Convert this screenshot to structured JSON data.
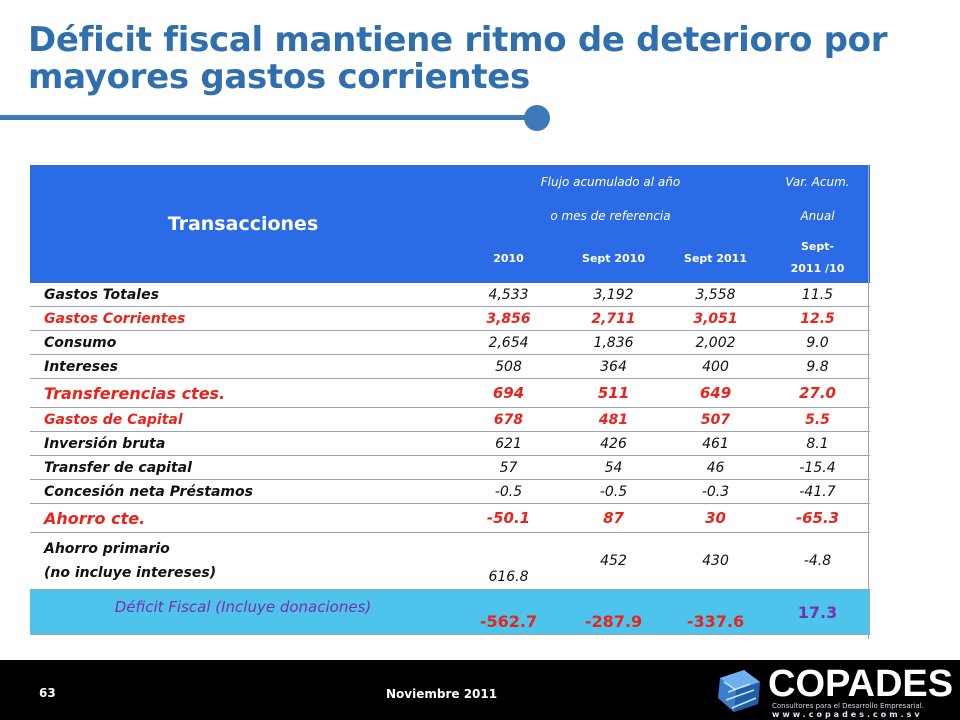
{
  "title": {
    "line1": "Déficit fiscal mantiene ritmo de deterioro por",
    "line2": "mayores gastos corrientes"
  },
  "table": {
    "header": {
      "transacciones": "Transacciones",
      "flujo_line1": "Flujo acumulado al año",
      "flujo_line2": "o mes de referencia",
      "var_line1": "Var. Acum.",
      "var_line2": "Anual",
      "col_2010": "2010",
      "col_sept2010": "Sept 2010",
      "col_sept2011": "Sept 2011",
      "col_var_line1": "Sept-",
      "col_var_line2": "2011 /10"
    },
    "rows": [
      {
        "label": "Gastos Totales",
        "v2010": "4,533",
        "s2010": "3,192",
        "s2011": "3,558",
        "var": "11.5"
      },
      {
        "label": "Gastos Corrientes",
        "v2010": "3,856",
        "s2010": "2,711",
        "s2011": "3,051",
        "var": "12.5"
      },
      {
        "label": "Consumo",
        "v2010": "2,654",
        "s2010": "1,836",
        "s2011": "2,002",
        "var": "9.0"
      },
      {
        "label": "Intereses",
        "v2010": "508",
        "s2010": "364",
        "s2011": "400",
        "var": "9.8"
      },
      {
        "label": "Transferencias ctes.",
        "v2010": "694",
        "s2010": "511",
        "s2011": "649",
        "var": "27.0"
      },
      {
        "label": "Gastos de Capital",
        "v2010": "678",
        "s2010": "481",
        "s2011": "507",
        "var": "5.5"
      },
      {
        "label": "Inversión bruta",
        "v2010": "621",
        "s2010": "426",
        "s2011": "461",
        "var": "8.1"
      },
      {
        "label": "Transfer de capital",
        "v2010": "57",
        "s2010": "54",
        "s2011": "46",
        "var": "-15.4"
      },
      {
        "label": "Concesión neta Préstamos",
        "v2010": "-0.5",
        "s2010": "-0.5",
        "s2011": "-0.3",
        "var": "-41.7"
      },
      {
        "label": "Ahorro cte.",
        "v2010": "-50.1",
        "s2010": "87",
        "s2011": "30",
        "var": "-65.3"
      },
      {
        "label_line1": "Ahorro primario",
        "label_line2": "(no incluye intereses)",
        "v2010": "616.8",
        "s2010": "452",
        "s2011": "430",
        "var": "-4.8"
      }
    ],
    "total": {
      "label": "Déficit Fiscal (Incluye donaciones)",
      "v2010": "-562.7",
      "s2010": "-287.9",
      "s2011": "-337.6",
      "var": "17.3"
    }
  },
  "footer": {
    "page_number": "63",
    "date": "Noviembre 2011",
    "logo_name": "COPADES",
    "logo_tagline": "Consultores para el Desarrollo Empresarial.",
    "logo_url": "www.copades.com.sv"
  },
  "colors": {
    "title": "#2f6fad",
    "header_bg": "#2b6ce6",
    "highlight_red": "#e8241c",
    "total_bg": "#4ec3ec",
    "total_label": "#7a2fb0"
  }
}
